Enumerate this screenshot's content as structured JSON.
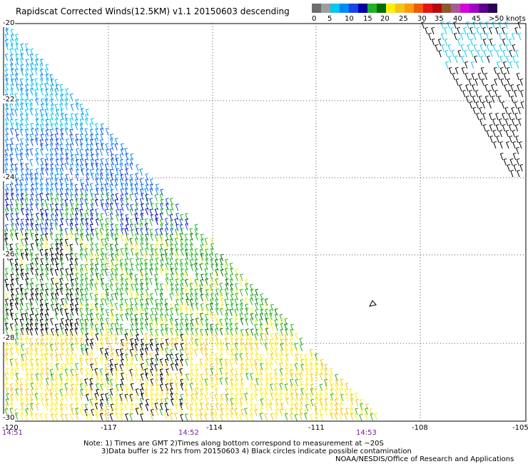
{
  "title": "Rapidscat Corrected Winds(12.5KM) v1.1 20150603 descending",
  "colorbar": {
    "colors": [
      "#6e6e6e",
      "#9e9e9e",
      "#00c8f0",
      "#008cf8",
      "#1a46e6",
      "#0000a8",
      "#1fb41f",
      "#006e00",
      "#ffee00",
      "#f2c414",
      "#ff9a0a",
      "#f05a08",
      "#e61414",
      "#b80a0a",
      "#8c5a28",
      "#a85a96",
      "#dc00dc",
      "#a400c8",
      "#5a008c",
      "#2c0058"
    ],
    "labels": [
      "0",
      "5",
      "10",
      "15",
      "20",
      "25",
      "30",
      "35",
      "40",
      "45",
      ">50 knots"
    ]
  },
  "latitude_labels": [
    "-20",
    "-22",
    "-24",
    "-26",
    "-28",
    "-30"
  ],
  "longitude_labels": [
    "-120",
    "-117",
    "-114",
    "-111",
    "-108",
    "-105"
  ],
  "time_labels": [
    "14:51",
    "14:52",
    "14:53"
  ],
  "notes": {
    "line1": "Note: 1) Times are GMT 2)Times along bottom correspond to measurement at ~20S",
    "line2": "3)Data buffer is 22 hrs from 20150603 4) Black circles indicate possible contamination",
    "line3": "NOAA/NESDIS/Office of Research and Applications"
  },
  "map_colors": {
    "frame": "#000000",
    "grid": "#555555",
    "island": "#000000"
  }
}
